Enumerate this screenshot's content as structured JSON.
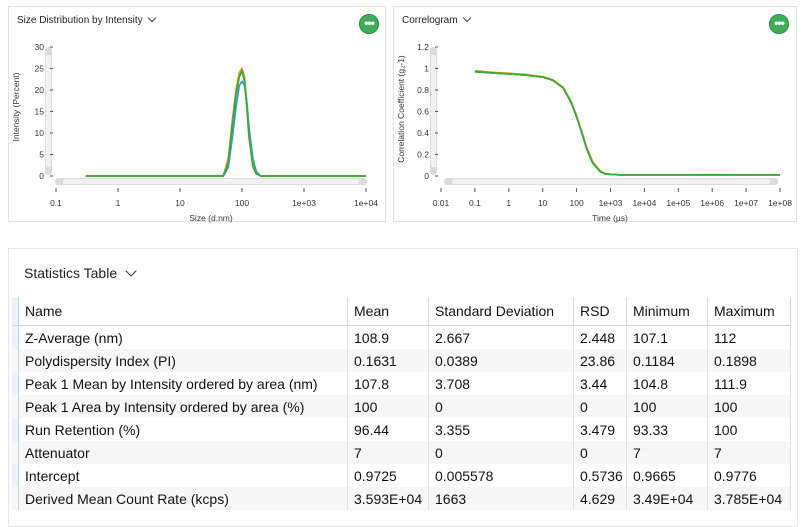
{
  "size_panel": {
    "title": "Size Distribution by Intensity",
    "ylabel": "Intensity (Percent)",
    "xlabel": "Size (d.nm)",
    "yticks": [
      "30",
      "25",
      "20",
      "15",
      "10",
      "5",
      "0"
    ],
    "xticks": [
      "0.1",
      "1",
      "10",
      "100",
      "1e+03",
      "1e+04"
    ]
  },
  "correlogram_panel": {
    "title": "Correlogram",
    "ylabel": "Correlation Coefficient (g₂-1)",
    "xlabel": "Time (µs)",
    "yticks": [
      "1.2",
      "1",
      "0.8",
      "0.6",
      "0.4",
      "0.2",
      "0"
    ],
    "xticks": [
      "0.01",
      "0.1",
      "1",
      "10",
      "100",
      "1e+03",
      "1e+04",
      "1e+05",
      "1e+06",
      "1e+07",
      "1e+08"
    ]
  },
  "menu_icon": "more-options-icon",
  "accent_color": "#3fae5a",
  "series_colors": [
    "#2e9fd4",
    "#e0a020",
    "#3aaa35"
  ],
  "chart_data": [
    {
      "type": "line",
      "title": "Size Distribution by Intensity",
      "xlabel": "Size (d.nm)",
      "ylabel": "Intensity (Percent)",
      "xscale": "log",
      "xlim": [
        0.1,
        10000
      ],
      "ylim": [
        0,
        30
      ],
      "grid": false,
      "x": [
        0.3,
        50,
        60,
        70,
        80,
        90,
        100,
        110,
        120,
        130,
        150,
        170,
        200,
        250,
        10000
      ],
      "series": [
        {
          "values": [
            0,
            0,
            2,
            9,
            16,
            21,
            22,
            21,
            17,
            11,
            4,
            1,
            0,
            0,
            0
          ]
        },
        {
          "values": [
            0,
            0,
            4,
            13,
            20,
            24,
            25,
            23,
            16,
            9,
            2,
            0.5,
            0,
            0,
            0
          ]
        },
        {
          "values": [
            0,
            0,
            3,
            12,
            19,
            23,
            24.5,
            22,
            16,
            9,
            2.5,
            0.5,
            0,
            0,
            0
          ]
        }
      ]
    },
    {
      "type": "line",
      "title": "Correlogram",
      "xlabel": "Time (µs)",
      "ylabel": "Correlation Coefficient (g₂-1)",
      "xscale": "log",
      "xlim": [
        0.01,
        100000000
      ],
      "ylim": [
        0,
        1.2
      ],
      "grid": false,
      "x": [
        0.1,
        0.3,
        1,
        3,
        10,
        20,
        40,
        70,
        100,
        150,
        200,
        300,
        500,
        700,
        1000,
        2000,
        10000,
        100000,
        1000000,
        10000000,
        100000000
      ],
      "series": [
        {
          "values": [
            0.97,
            0.96,
            0.95,
            0.94,
            0.92,
            0.89,
            0.82,
            0.68,
            0.55,
            0.38,
            0.25,
            0.12,
            0.04,
            0.02,
            0.015,
            0.01,
            0.01,
            0.01,
            0.01,
            0.01,
            0.01
          ]
        },
        {
          "values": [
            0.98,
            0.965,
            0.955,
            0.945,
            0.925,
            0.895,
            0.825,
            0.69,
            0.56,
            0.39,
            0.26,
            0.13,
            0.045,
            0.02,
            0.015,
            0.01,
            0.01,
            0.01,
            0.012,
            0.01,
            0.01
          ]
        },
        {
          "values": [
            0.97,
            0.96,
            0.95,
            0.94,
            0.92,
            0.89,
            0.82,
            0.68,
            0.55,
            0.38,
            0.25,
            0.12,
            0.04,
            0.02,
            0.015,
            0.01,
            0.01,
            0.01,
            0.01,
            0.01,
            0.01
          ]
        }
      ]
    }
  ],
  "stats": {
    "title": "Statistics Table",
    "headers": [
      "Name",
      "Mean",
      "Standard Deviation",
      "RSD",
      "Minimum",
      "Maximum"
    ],
    "rows": [
      [
        "Z-Average (nm)",
        "108.9",
        "2.667",
        "2.448",
        "107.1",
        "112"
      ],
      [
        "Polydispersity Index (PI)",
        "0.1631",
        "0.0389",
        "23.86",
        "0.1184",
        "0.1898"
      ],
      [
        "Peak 1 Mean by Intensity ordered by area (nm)",
        "107.8",
        "3.708",
        "3.44",
        "104.8",
        "111.9"
      ],
      [
        "Peak 1 Area by Intensity ordered by area (%)",
        "100",
        "0",
        "0",
        "100",
        "100"
      ],
      [
        "Run Retention (%)",
        "96.44",
        "3.355",
        "3.479",
        "93.33",
        "100"
      ],
      [
        "Attenuator",
        "7",
        "0",
        "0",
        "7",
        "7"
      ],
      [
        "Intercept",
        "0.9725",
        "0.005578",
        "0.5736",
        "0.9665",
        "0.9776"
      ],
      [
        "Derived Mean Count Rate (kcps)",
        "3.593E+04",
        "1663",
        "4.629",
        "3.49E+04",
        "3.785E+04"
      ]
    ]
  }
}
